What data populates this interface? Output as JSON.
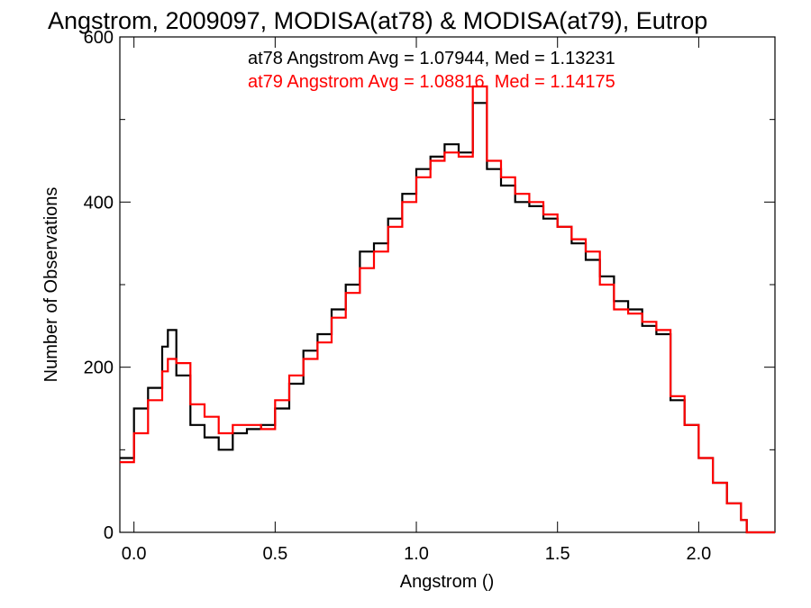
{
  "chart_data": {
    "type": "line",
    "title": "Angstrom, 2009097, MODISA(at78) & MODISA(at79), Eutrop",
    "xlabel": "Angstrom ()",
    "ylabel": "Number of Observations",
    "xlim": [
      -0.05,
      2.27
    ],
    "ylim": [
      0,
      600
    ],
    "x_ticks": [
      "0.0",
      "0.5",
      "1.0",
      "1.5",
      "2.0"
    ],
    "y_ticks": [
      "0",
      "200",
      "400",
      "600"
    ],
    "grid": false,
    "legend_position": "top-right",
    "annotations": [
      "at78 Angstrom Avg = 1.07944, Med = 1.13231",
      "at79 Angstrom Avg = 1.08816, Med = 1.14175"
    ],
    "series": [
      {
        "name": "at78",
        "color": "#000000",
        "x": [
          -0.05,
          0.0,
          0.05,
          0.1,
          0.12,
          0.15,
          0.2,
          0.25,
          0.3,
          0.35,
          0.4,
          0.45,
          0.5,
          0.55,
          0.6,
          0.65,
          0.7,
          0.75,
          0.8,
          0.85,
          0.9,
          0.95,
          1.0,
          1.05,
          1.1,
          1.15,
          1.2,
          1.25,
          1.3,
          1.35,
          1.4,
          1.45,
          1.5,
          1.55,
          1.6,
          1.65,
          1.7,
          1.75,
          1.8,
          1.85,
          1.9,
          1.95,
          2.0,
          2.05,
          2.1,
          2.15,
          2.17,
          2.27
        ],
        "y": [
          90,
          150,
          175,
          225,
          245,
          190,
          130,
          115,
          100,
          120,
          125,
          130,
          150,
          180,
          220,
          240,
          270,
          300,
          340,
          350,
          380,
          410,
          440,
          455,
          470,
          460,
          520,
          440,
          420,
          400,
          395,
          380,
          370,
          350,
          330,
          310,
          280,
          270,
          250,
          240,
          160,
          130,
          90,
          60,
          35,
          15,
          0,
          0
        ]
      },
      {
        "name": "at79",
        "color": "#ff0000",
        "x": [
          -0.05,
          0.0,
          0.05,
          0.1,
          0.12,
          0.15,
          0.2,
          0.25,
          0.3,
          0.35,
          0.4,
          0.45,
          0.5,
          0.55,
          0.6,
          0.65,
          0.7,
          0.75,
          0.8,
          0.85,
          0.9,
          0.95,
          1.0,
          1.05,
          1.1,
          1.15,
          1.2,
          1.25,
          1.3,
          1.35,
          1.4,
          1.45,
          1.5,
          1.55,
          1.6,
          1.65,
          1.7,
          1.75,
          1.8,
          1.85,
          1.9,
          1.95,
          2.0,
          2.05,
          2.1,
          2.15,
          2.17,
          2.27
        ],
        "y": [
          85,
          120,
          160,
          195,
          210,
          205,
          155,
          140,
          120,
          130,
          130,
          125,
          160,
          190,
          210,
          230,
          260,
          290,
          320,
          340,
          370,
          400,
          430,
          450,
          460,
          455,
          540,
          450,
          430,
          410,
          400,
          385,
          370,
          355,
          340,
          300,
          270,
          265,
          255,
          245,
          165,
          130,
          90,
          60,
          35,
          15,
          0,
          0
        ]
      }
    ]
  }
}
